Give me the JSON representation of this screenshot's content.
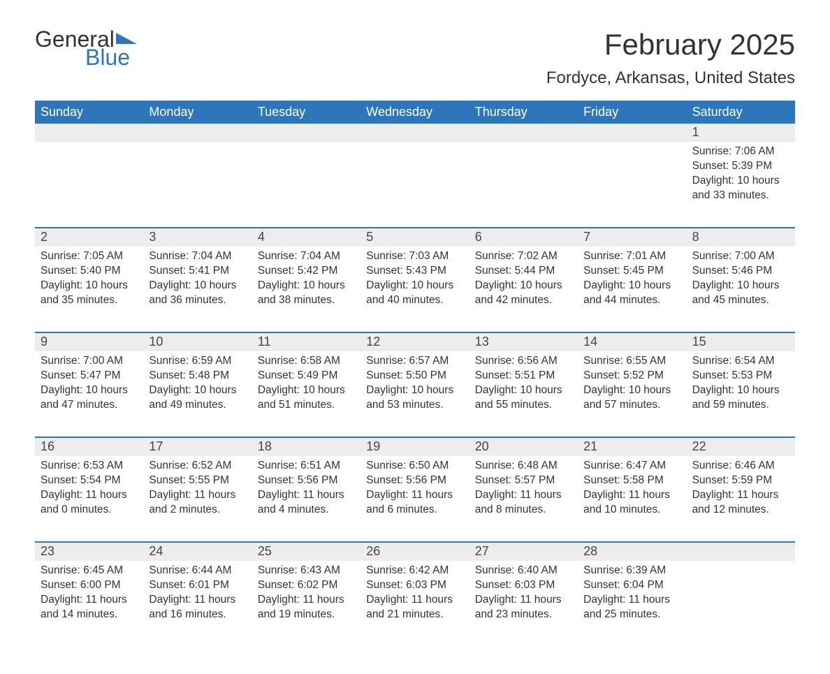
{
  "brand": {
    "word1": "General",
    "word2": "Blue",
    "flag_color": "#2d76bb"
  },
  "title": "February 2025",
  "subtitle": "Fordyce, Arkansas, United States",
  "colors": {
    "header_bg": "#2d76bb",
    "header_text": "#ffffff",
    "daynum_bg": "#ededed",
    "week_divider": "#2d76bb",
    "body_text": "#333333"
  },
  "dow": [
    "Sunday",
    "Monday",
    "Tuesday",
    "Wednesday",
    "Thursday",
    "Friday",
    "Saturday"
  ],
  "weeks": [
    [
      null,
      null,
      null,
      null,
      null,
      null,
      {
        "n": "1",
        "sr": "Sunrise: 7:06 AM",
        "ss": "Sunset: 5:39 PM",
        "d1": "Daylight: 10 hours",
        "d2": "and 33 minutes."
      }
    ],
    [
      {
        "n": "2",
        "sr": "Sunrise: 7:05 AM",
        "ss": "Sunset: 5:40 PM",
        "d1": "Daylight: 10 hours",
        "d2": "and 35 minutes."
      },
      {
        "n": "3",
        "sr": "Sunrise: 7:04 AM",
        "ss": "Sunset: 5:41 PM",
        "d1": "Daylight: 10 hours",
        "d2": "and 36 minutes."
      },
      {
        "n": "4",
        "sr": "Sunrise: 7:04 AM",
        "ss": "Sunset: 5:42 PM",
        "d1": "Daylight: 10 hours",
        "d2": "and 38 minutes."
      },
      {
        "n": "5",
        "sr": "Sunrise: 7:03 AM",
        "ss": "Sunset: 5:43 PM",
        "d1": "Daylight: 10 hours",
        "d2": "and 40 minutes."
      },
      {
        "n": "6",
        "sr": "Sunrise: 7:02 AM",
        "ss": "Sunset: 5:44 PM",
        "d1": "Daylight: 10 hours",
        "d2": "and 42 minutes."
      },
      {
        "n": "7",
        "sr": "Sunrise: 7:01 AM",
        "ss": "Sunset: 5:45 PM",
        "d1": "Daylight: 10 hours",
        "d2": "and 44 minutes."
      },
      {
        "n": "8",
        "sr": "Sunrise: 7:00 AM",
        "ss": "Sunset: 5:46 PM",
        "d1": "Daylight: 10 hours",
        "d2": "and 45 minutes."
      }
    ],
    [
      {
        "n": "9",
        "sr": "Sunrise: 7:00 AM",
        "ss": "Sunset: 5:47 PM",
        "d1": "Daylight: 10 hours",
        "d2": "and 47 minutes."
      },
      {
        "n": "10",
        "sr": "Sunrise: 6:59 AM",
        "ss": "Sunset: 5:48 PM",
        "d1": "Daylight: 10 hours",
        "d2": "and 49 minutes."
      },
      {
        "n": "11",
        "sr": "Sunrise: 6:58 AM",
        "ss": "Sunset: 5:49 PM",
        "d1": "Daylight: 10 hours",
        "d2": "and 51 minutes."
      },
      {
        "n": "12",
        "sr": "Sunrise: 6:57 AM",
        "ss": "Sunset: 5:50 PM",
        "d1": "Daylight: 10 hours",
        "d2": "and 53 minutes."
      },
      {
        "n": "13",
        "sr": "Sunrise: 6:56 AM",
        "ss": "Sunset: 5:51 PM",
        "d1": "Daylight: 10 hours",
        "d2": "and 55 minutes."
      },
      {
        "n": "14",
        "sr": "Sunrise: 6:55 AM",
        "ss": "Sunset: 5:52 PM",
        "d1": "Daylight: 10 hours",
        "d2": "and 57 minutes."
      },
      {
        "n": "15",
        "sr": "Sunrise: 6:54 AM",
        "ss": "Sunset: 5:53 PM",
        "d1": "Daylight: 10 hours",
        "d2": "and 59 minutes."
      }
    ],
    [
      {
        "n": "16",
        "sr": "Sunrise: 6:53 AM",
        "ss": "Sunset: 5:54 PM",
        "d1": "Daylight: 11 hours",
        "d2": "and 0 minutes."
      },
      {
        "n": "17",
        "sr": "Sunrise: 6:52 AM",
        "ss": "Sunset: 5:55 PM",
        "d1": "Daylight: 11 hours",
        "d2": "and 2 minutes."
      },
      {
        "n": "18",
        "sr": "Sunrise: 6:51 AM",
        "ss": "Sunset: 5:56 PM",
        "d1": "Daylight: 11 hours",
        "d2": "and 4 minutes."
      },
      {
        "n": "19",
        "sr": "Sunrise: 6:50 AM",
        "ss": "Sunset: 5:56 PM",
        "d1": "Daylight: 11 hours",
        "d2": "and 6 minutes."
      },
      {
        "n": "20",
        "sr": "Sunrise: 6:48 AM",
        "ss": "Sunset: 5:57 PM",
        "d1": "Daylight: 11 hours",
        "d2": "and 8 minutes."
      },
      {
        "n": "21",
        "sr": "Sunrise: 6:47 AM",
        "ss": "Sunset: 5:58 PM",
        "d1": "Daylight: 11 hours",
        "d2": "and 10 minutes."
      },
      {
        "n": "22",
        "sr": "Sunrise: 6:46 AM",
        "ss": "Sunset: 5:59 PM",
        "d1": "Daylight: 11 hours",
        "d2": "and 12 minutes."
      }
    ],
    [
      {
        "n": "23",
        "sr": "Sunrise: 6:45 AM",
        "ss": "Sunset: 6:00 PM",
        "d1": "Daylight: 11 hours",
        "d2": "and 14 minutes."
      },
      {
        "n": "24",
        "sr": "Sunrise: 6:44 AM",
        "ss": "Sunset: 6:01 PM",
        "d1": "Daylight: 11 hours",
        "d2": "and 16 minutes."
      },
      {
        "n": "25",
        "sr": "Sunrise: 6:43 AM",
        "ss": "Sunset: 6:02 PM",
        "d1": "Daylight: 11 hours",
        "d2": "and 19 minutes."
      },
      {
        "n": "26",
        "sr": "Sunrise: 6:42 AM",
        "ss": "Sunset: 6:03 PM",
        "d1": "Daylight: 11 hours",
        "d2": "and 21 minutes."
      },
      {
        "n": "27",
        "sr": "Sunrise: 6:40 AM",
        "ss": "Sunset: 6:03 PM",
        "d1": "Daylight: 11 hours",
        "d2": "and 23 minutes."
      },
      {
        "n": "28",
        "sr": "Sunrise: 6:39 AM",
        "ss": "Sunset: 6:04 PM",
        "d1": "Daylight: 11 hours",
        "d2": "and 25 minutes."
      },
      null
    ]
  ]
}
